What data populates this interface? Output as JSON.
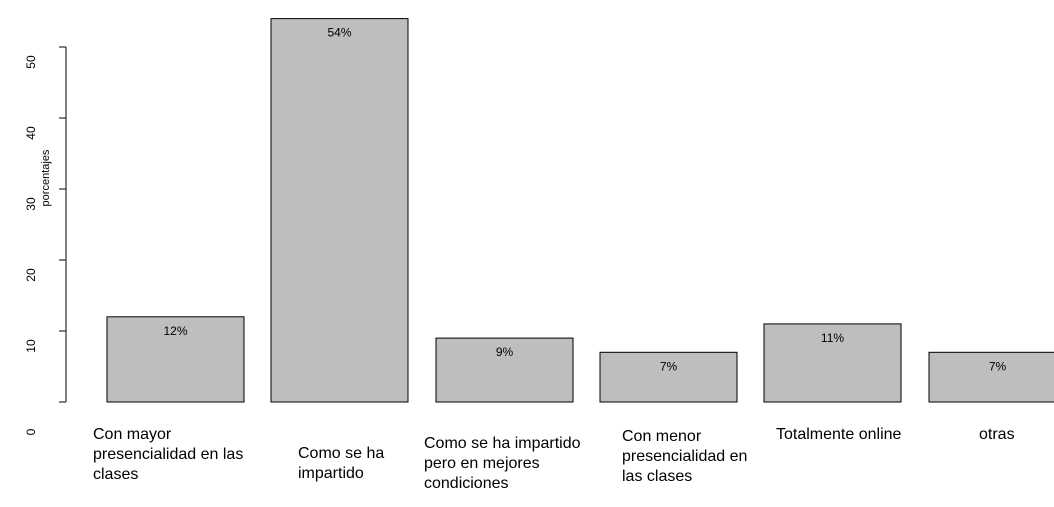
{
  "chart_data": {
    "type": "bar",
    "categories": [
      "Con mayor presencialidad en las clases",
      "Como se ha impartido",
      "Como se ha impartido pero en mejores condiciones",
      "Con menor presencialidad en las clases",
      "Totalmente online",
      "otras"
    ],
    "values": [
      12,
      54,
      9,
      7,
      11,
      7
    ],
    "data_labels": [
      "12%",
      "54%",
      "9%",
      "7%",
      "11%",
      "7%"
    ],
    "title": "",
    "xlabel": "",
    "ylabel": "porcentajes",
    "ylim": [
      0,
      55
    ],
    "yticks": [
      0,
      10,
      20,
      30,
      40,
      50
    ],
    "ytick_labels": [
      "0",
      "10",
      "20",
      "30",
      "40",
      "50"
    ],
    "grid": false,
    "colors": {
      "bar_fill": "#bebebe",
      "bar_stroke": "#000000"
    }
  }
}
